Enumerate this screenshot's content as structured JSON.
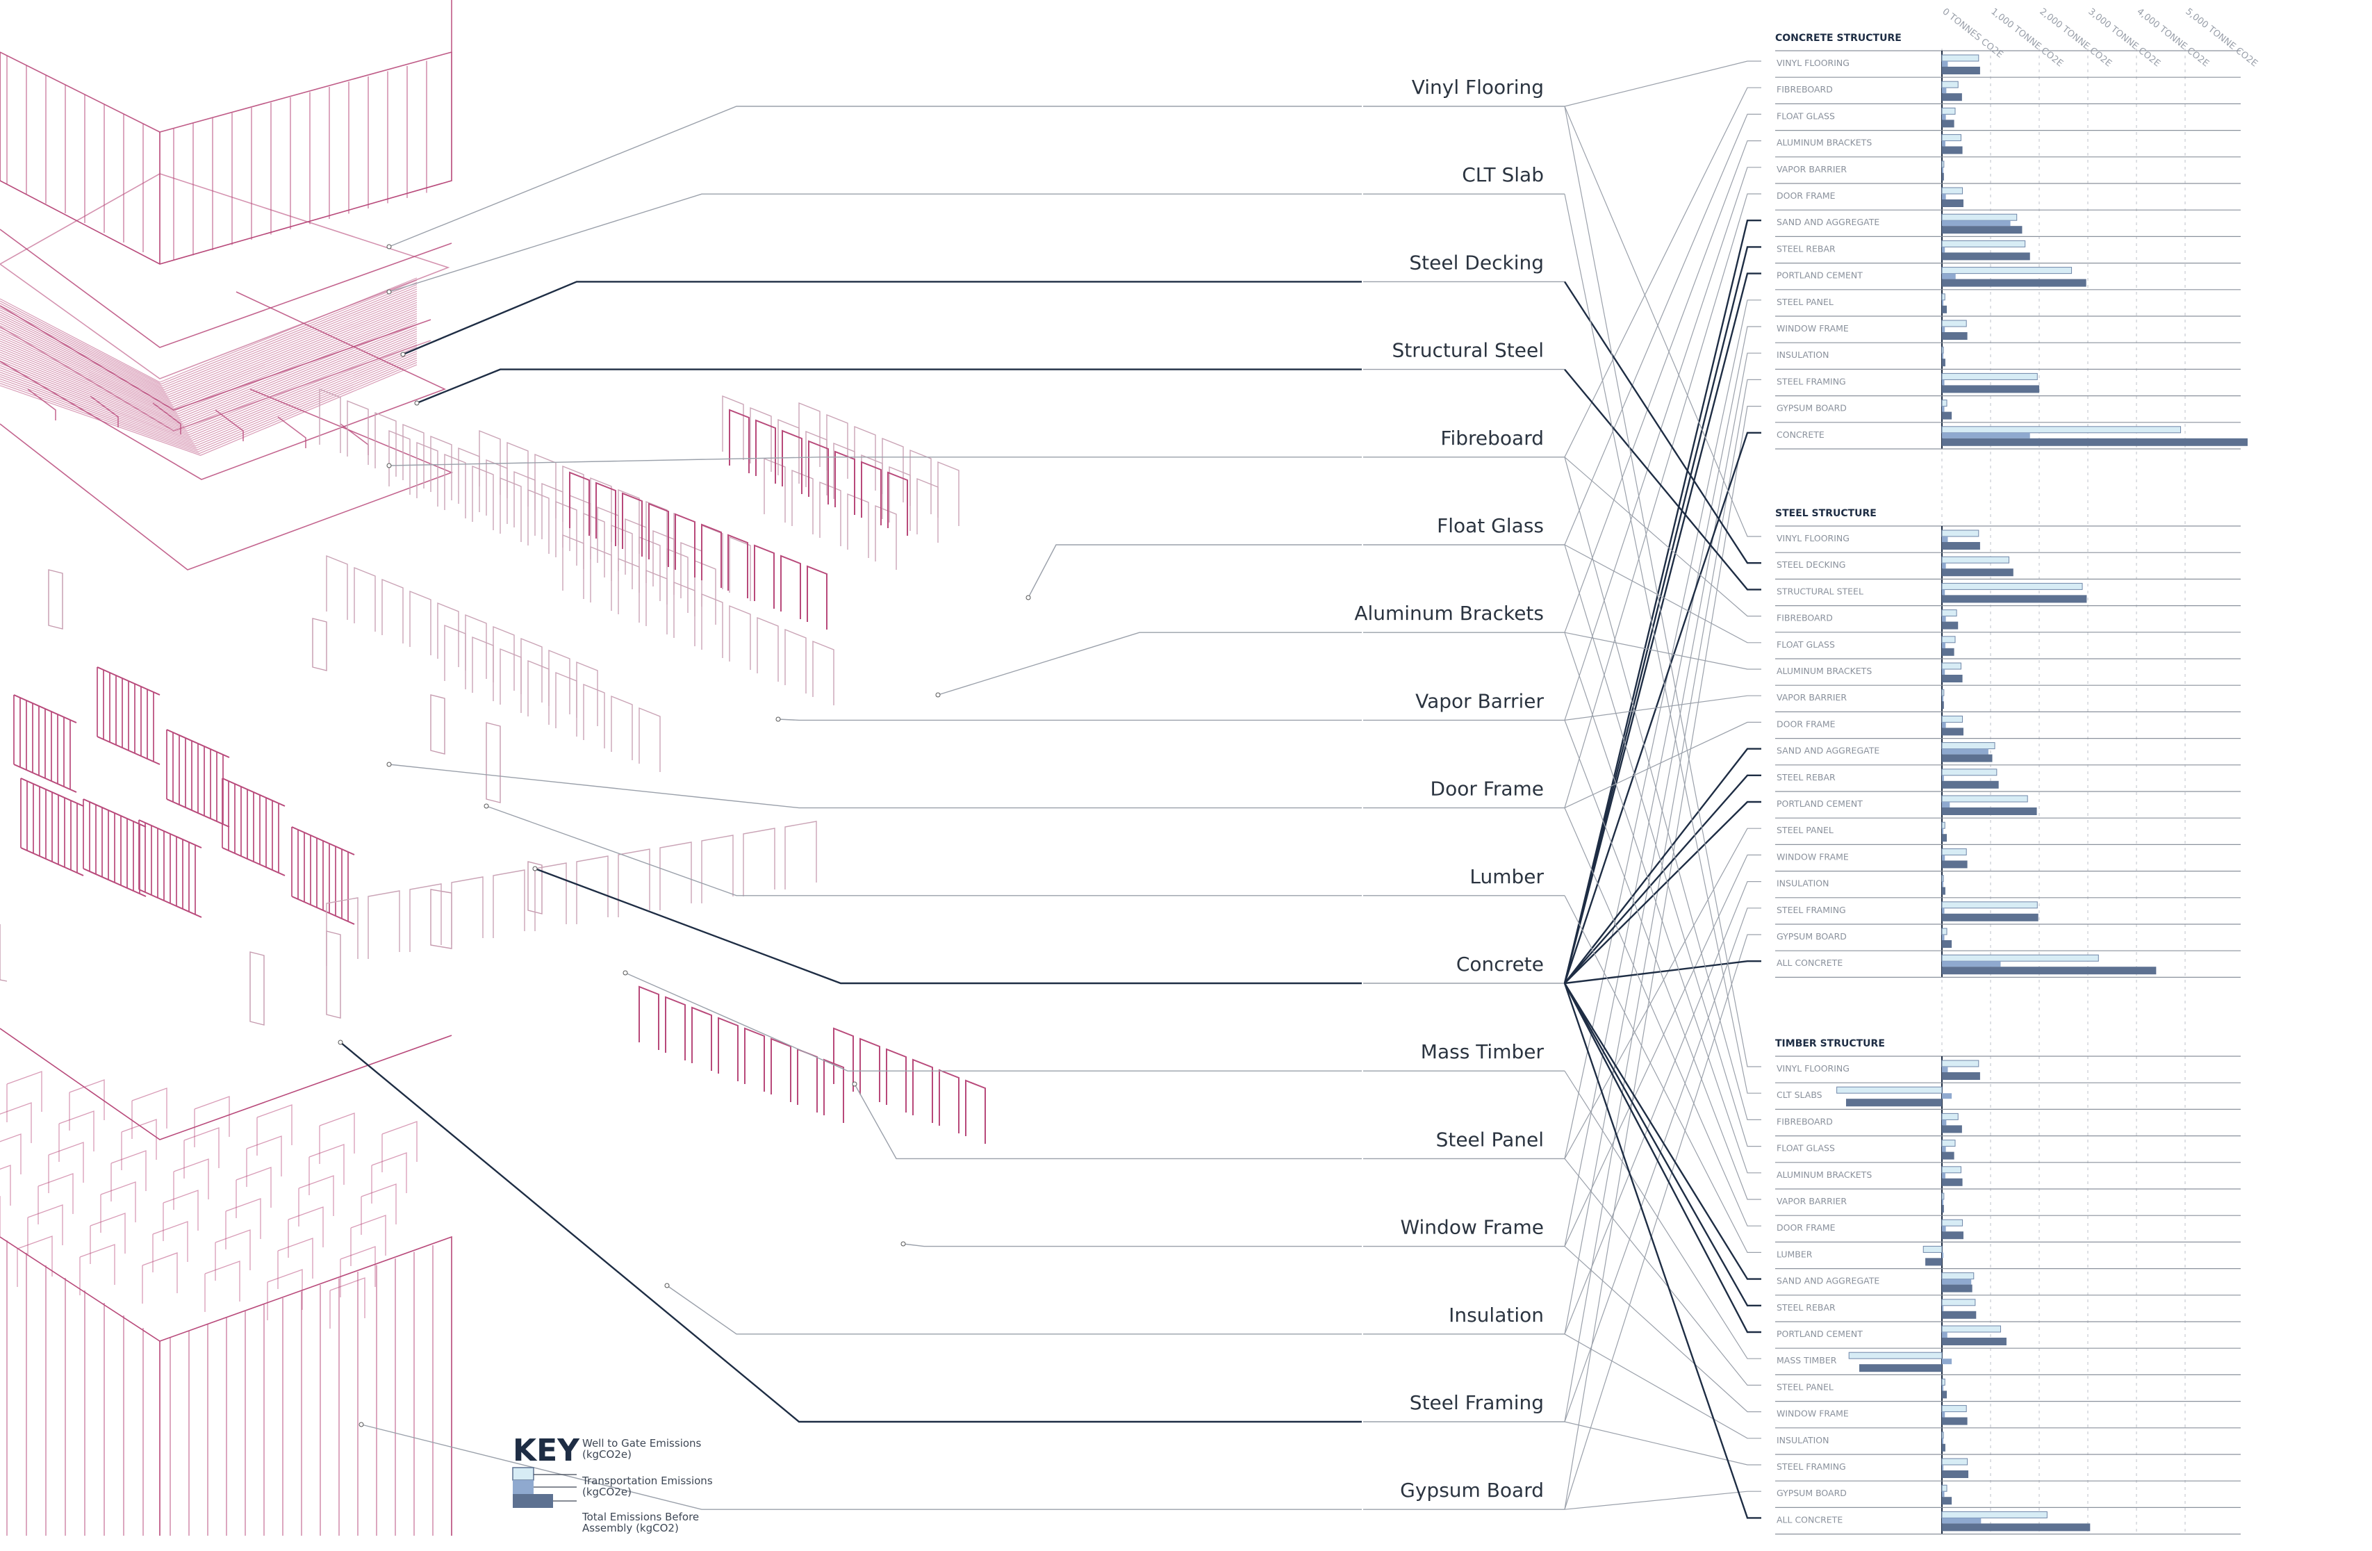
{
  "colors": {
    "wtg": "#d7ecf5",
    "transport": "#8fa9cf",
    "total": "#5d7191",
    "accent": "#b8497a",
    "dark_line": "#1e2d44",
    "grey_line": "#9aa0aa"
  },
  "materials": [
    "Vinyl Flooring",
    "CLT Slab",
    "Steel Decking",
    "Structural Steel",
    "Fibreboard",
    "Float Glass",
    "Aluminum Brackets",
    "Vapor Barrier",
    "Door Frame",
    "Lumber",
    "Concrete",
    "Mass Timber",
    "Steel Panel",
    "Window Frame",
    "Insulation",
    "Steel Framing",
    "Gypsum Board"
  ],
  "axis": {
    "ticks": [
      "0 TONNES CO2E",
      "1,000 TONNE CO2E",
      "2,000 TONNE CO2E",
      "3,000 TONNE CO2E",
      "4,000 TONNE CO2E",
      "5,000 TONNE CO2E"
    ],
    "max": 6250
  },
  "sections": [
    {
      "title": "CONCRETE STRUCTURE",
      "rows": [
        {
          "label": "VINYL FLOORING",
          "wtg": 750,
          "transport": 120,
          "total": 780
        },
        {
          "label": "FIBREBOARD",
          "wtg": 330,
          "transport": 90,
          "total": 410
        },
        {
          "label": "FLOAT GLASS",
          "wtg": 270,
          "transport": 80,
          "total": 250
        },
        {
          "label": "ALUMINUM BRACKETS",
          "wtg": 390,
          "transport": 70,
          "total": 420
        },
        {
          "label": "VAPOR BARRIER",
          "wtg": 40,
          "transport": 20,
          "total": 40
        },
        {
          "label": "DOOR FRAME",
          "wtg": 420,
          "transport": 80,
          "total": 440
        },
        {
          "label": "SAND AND AGGREGATE",
          "wtg": 1530,
          "transport": 1400,
          "total": 1640
        },
        {
          "label": "STEEL REBAR",
          "wtg": 1700,
          "transport": 60,
          "total": 1800
        },
        {
          "label": "PORTLAND CEMENT",
          "wtg": 2650,
          "transport": 280,
          "total": 2950
        },
        {
          "label": "STEEL PANEL",
          "wtg": 60,
          "transport": 20,
          "total": 100
        },
        {
          "label": "WINDOW FRAME",
          "wtg": 500,
          "transport": 60,
          "total": 520
        },
        {
          "label": "INSULATION",
          "wtg": 30,
          "transport": 10,
          "total": 70
        },
        {
          "label": "STEEL FRAMING",
          "wtg": 1950,
          "transport": 50,
          "total": 1990
        },
        {
          "label": "GYPSUM BOARD",
          "wtg": 100,
          "transport": 50,
          "total": 200
        },
        {
          "label": "CONCRETE",
          "wtg": 4880,
          "transport": 1800,
          "total": 6250
        }
      ]
    },
    {
      "title": "STEEL STRUCTURE",
      "rows": [
        {
          "label": "VINYL FLOORING",
          "wtg": 750,
          "transport": 120,
          "total": 780
        },
        {
          "label": "STEEL DECKING",
          "wtg": 1370,
          "transport": 80,
          "total": 1460
        },
        {
          "label": "STRUCTURAL STEEL",
          "wtg": 2870,
          "transport": 60,
          "total": 2960
        },
        {
          "label": "FIBREBOARD",
          "wtg": 300,
          "transport": 80,
          "total": 330
        },
        {
          "label": "FLOAT GLASS",
          "wtg": 270,
          "transport": 70,
          "total": 250
        },
        {
          "label": "ALUMINUM BRACKETS",
          "wtg": 390,
          "transport": 60,
          "total": 420
        },
        {
          "label": "VAPOR BARRIER",
          "wtg": 40,
          "transport": 20,
          "total": 40
        },
        {
          "label": "DOOR FRAME",
          "wtg": 420,
          "transport": 80,
          "total": 440
        },
        {
          "label": "SAND AND AGGREGATE",
          "wtg": 1080,
          "transport": 950,
          "total": 1030
        },
        {
          "label": "STEEL REBAR",
          "wtg": 1120,
          "transport": 40,
          "total": 1160
        },
        {
          "label": "PORTLAND CEMENT",
          "wtg": 1750,
          "transport": 160,
          "total": 1940
        },
        {
          "label": "STEEL PANEL",
          "wtg": 60,
          "transport": 20,
          "total": 100
        },
        {
          "label": "WINDOW FRAME",
          "wtg": 500,
          "transport": 60,
          "total": 520
        },
        {
          "label": "INSULATION",
          "wtg": 30,
          "transport": 10,
          "total": 70
        },
        {
          "label": "STEEL FRAMING",
          "wtg": 1950,
          "transport": 50,
          "total": 1970
        },
        {
          "label": "GYPSUM BOARD",
          "wtg": 100,
          "transport": 50,
          "total": 200
        },
        {
          "label": "ALL CONCRETE",
          "wtg": 3200,
          "transport": 1200,
          "total": 4380
        }
      ]
    },
    {
      "title": "TIMBER STRUCTURE",
      "rows": [
        {
          "label": "VINYL FLOORING",
          "wtg": 750,
          "transport": 120,
          "total": 780
        },
        {
          "label": "CLT SLABS",
          "wtg": -2150,
          "transport": 200,
          "total": -1960
        },
        {
          "label": "FIBREBOARD",
          "wtg": 330,
          "transport": 90,
          "total": 410
        },
        {
          "label": "FLOAT GLASS",
          "wtg": 270,
          "transport": 80,
          "total": 250
        },
        {
          "label": "ALUMINUM BRACKETS",
          "wtg": 390,
          "transport": 70,
          "total": 420
        },
        {
          "label": "VAPOR BARRIER",
          "wtg": 40,
          "transport": 20,
          "total": 40
        },
        {
          "label": "DOOR FRAME",
          "wtg": 420,
          "transport": 80,
          "total": 440
        },
        {
          "label": "LUMBER",
          "wtg": -380,
          "transport": 30,
          "total": -340
        },
        {
          "label": "SAND AND AGGREGATE",
          "wtg": 650,
          "transport": 600,
          "total": 620
        },
        {
          "label": "STEEL REBAR",
          "wtg": 680,
          "transport": 30,
          "total": 700
        },
        {
          "label": "PORTLAND CEMENT",
          "wtg": 1200,
          "transport": 110,
          "total": 1320
        },
        {
          "label": "MASS TIMBER",
          "wtg": -1900,
          "transport": 200,
          "total": -1690
        },
        {
          "label": "STEEL PANEL",
          "wtg": 60,
          "transport": 20,
          "total": 100
        },
        {
          "label": "WINDOW FRAME",
          "wtg": 500,
          "transport": 60,
          "total": 520
        },
        {
          "label": "INSULATION",
          "wtg": 30,
          "transport": 10,
          "total": 70
        },
        {
          "label": "STEEL FRAMING",
          "wtg": 520,
          "transport": 30,
          "total": 540
        },
        {
          "label": "GYPSUM BOARD",
          "wtg": 100,
          "transport": 50,
          "total": 200
        },
        {
          "label": "ALL CONCRETE",
          "wtg": 2150,
          "transport": 800,
          "total": 3030
        }
      ]
    }
  ],
  "key": {
    "title": "KEY",
    "items": [
      {
        "line1": "Well to Gate Emissions",
        "line2": "(kgCO2e)"
      },
      {
        "line1": "Transportation Emissions",
        "line2": "(kgCO2e)"
      },
      {
        "line1": "Total Emissions Before",
        "line2": "Assembly (kgCO2)"
      }
    ]
  }
}
